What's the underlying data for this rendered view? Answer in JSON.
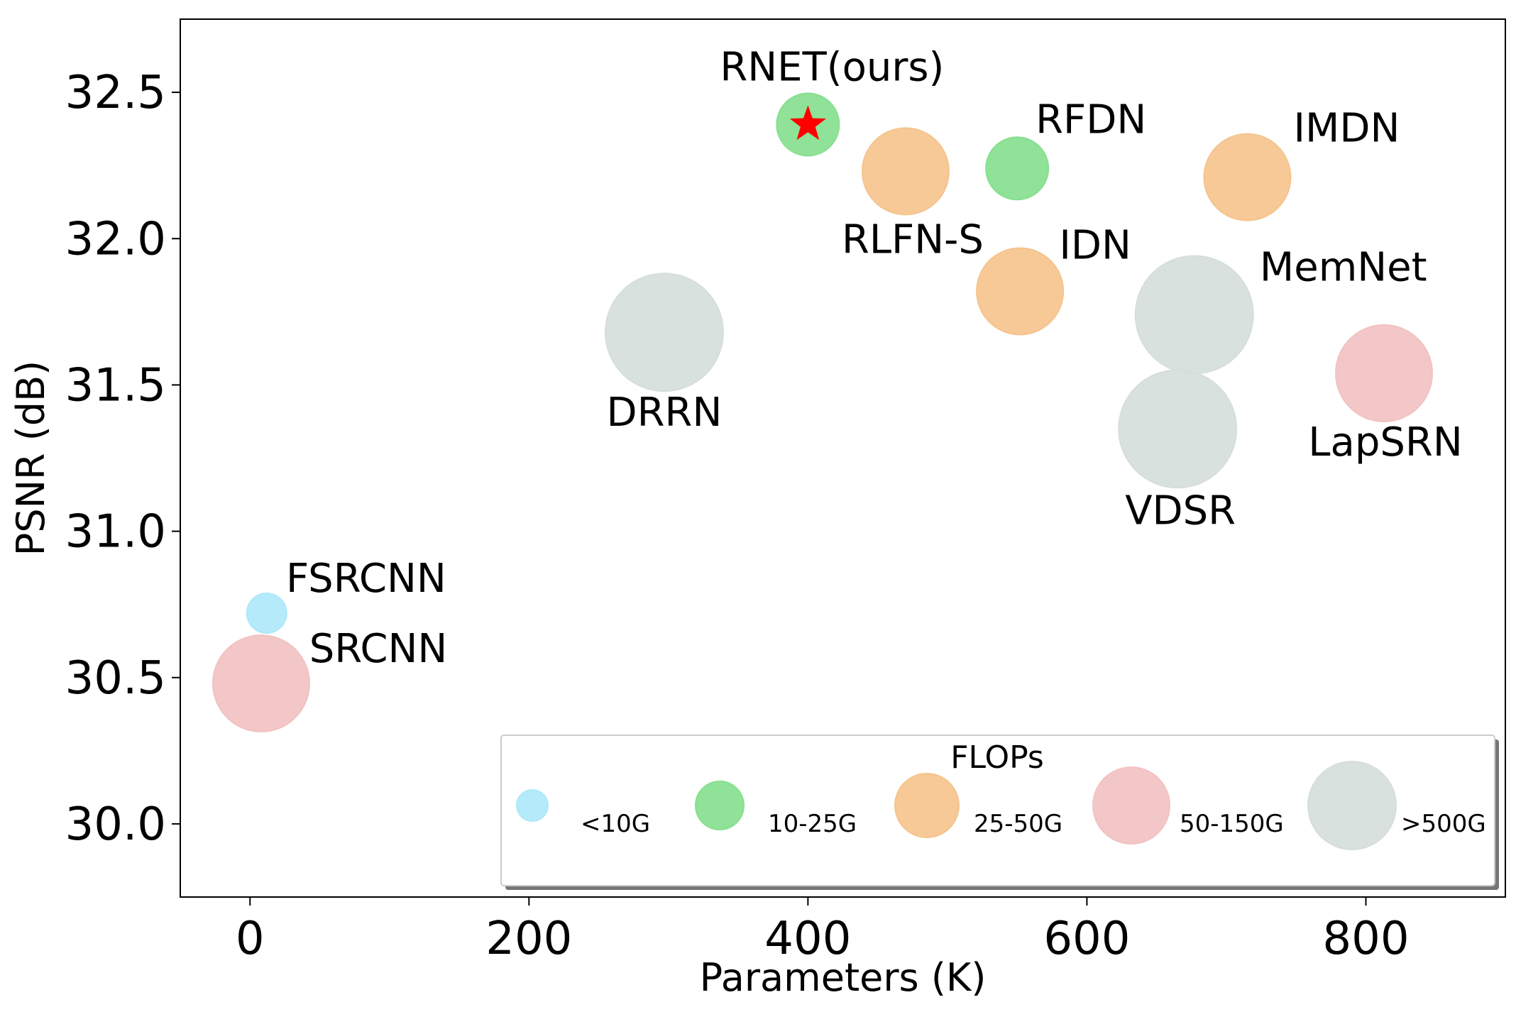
{
  "chart_data": {
    "type": "scatter",
    "title": "",
    "xlabel": "Parameters (K)",
    "ylabel": "PSNR (dB)",
    "xlim": [
      -50,
      900
    ],
    "ylim": [
      29.75,
      32.75
    ],
    "xticks": [
      0,
      200,
      400,
      600,
      800
    ],
    "yticks": [
      30.0,
      30.5,
      31.0,
      31.5,
      32.0,
      32.5
    ],
    "xtick_labels": [
      "0",
      "200",
      "400",
      "600",
      "800"
    ],
    "ytick_labels": [
      "30.0",
      "30.5",
      "31.0",
      "31.5",
      "32.0",
      "32.5"
    ],
    "grid": false,
    "points": [
      {
        "name": "RNET(ours)",
        "x": 400,
        "y": 32.39,
        "flops": "10-25G",
        "marker": "star"
      },
      {
        "name": "RFDN",
        "x": 550,
        "y": 32.24,
        "flops": "10-25G"
      },
      {
        "name": "RLFN-S",
        "x": 470,
        "y": 32.23,
        "flops": "25-50G"
      },
      {
        "name": "IMDN",
        "x": 715,
        "y": 32.21,
        "flops": "25-50G"
      },
      {
        "name": "IDN",
        "x": 552,
        "y": 31.82,
        "flops": "25-50G"
      },
      {
        "name": "MemNet",
        "x": 677,
        "y": 31.74,
        "flops": ">500G"
      },
      {
        "name": "DRRN",
        "x": 297,
        "y": 31.68,
        "flops": ">500G"
      },
      {
        "name": "LapSRN",
        "x": 813,
        "y": 31.54,
        "flops": "50-150G"
      },
      {
        "name": "VDSR",
        "x": 665,
        "y": 31.35,
        "flops": ">500G"
      },
      {
        "name": "FSRCNN",
        "x": 12,
        "y": 30.72,
        "flops": "<10G"
      },
      {
        "name": "SRCNN",
        "x": 8,
        "y": 30.48,
        "flops": "50-150G"
      }
    ],
    "legend": {
      "title": "FLOPs",
      "placement": "lower-right",
      "entries": [
        {
          "label": "<10G",
          "color": "#AEE8FA"
        },
        {
          "label": "10-25G",
          "color": "#86E08F"
        },
        {
          "label": "25-50G",
          "color": "#F5C48E"
        },
        {
          "label": "50-150G",
          "color": "#F2C2C2"
        },
        {
          "label": ">500G",
          "color": "#D6DEDB"
        }
      ]
    },
    "star_color": "#FF0000"
  }
}
